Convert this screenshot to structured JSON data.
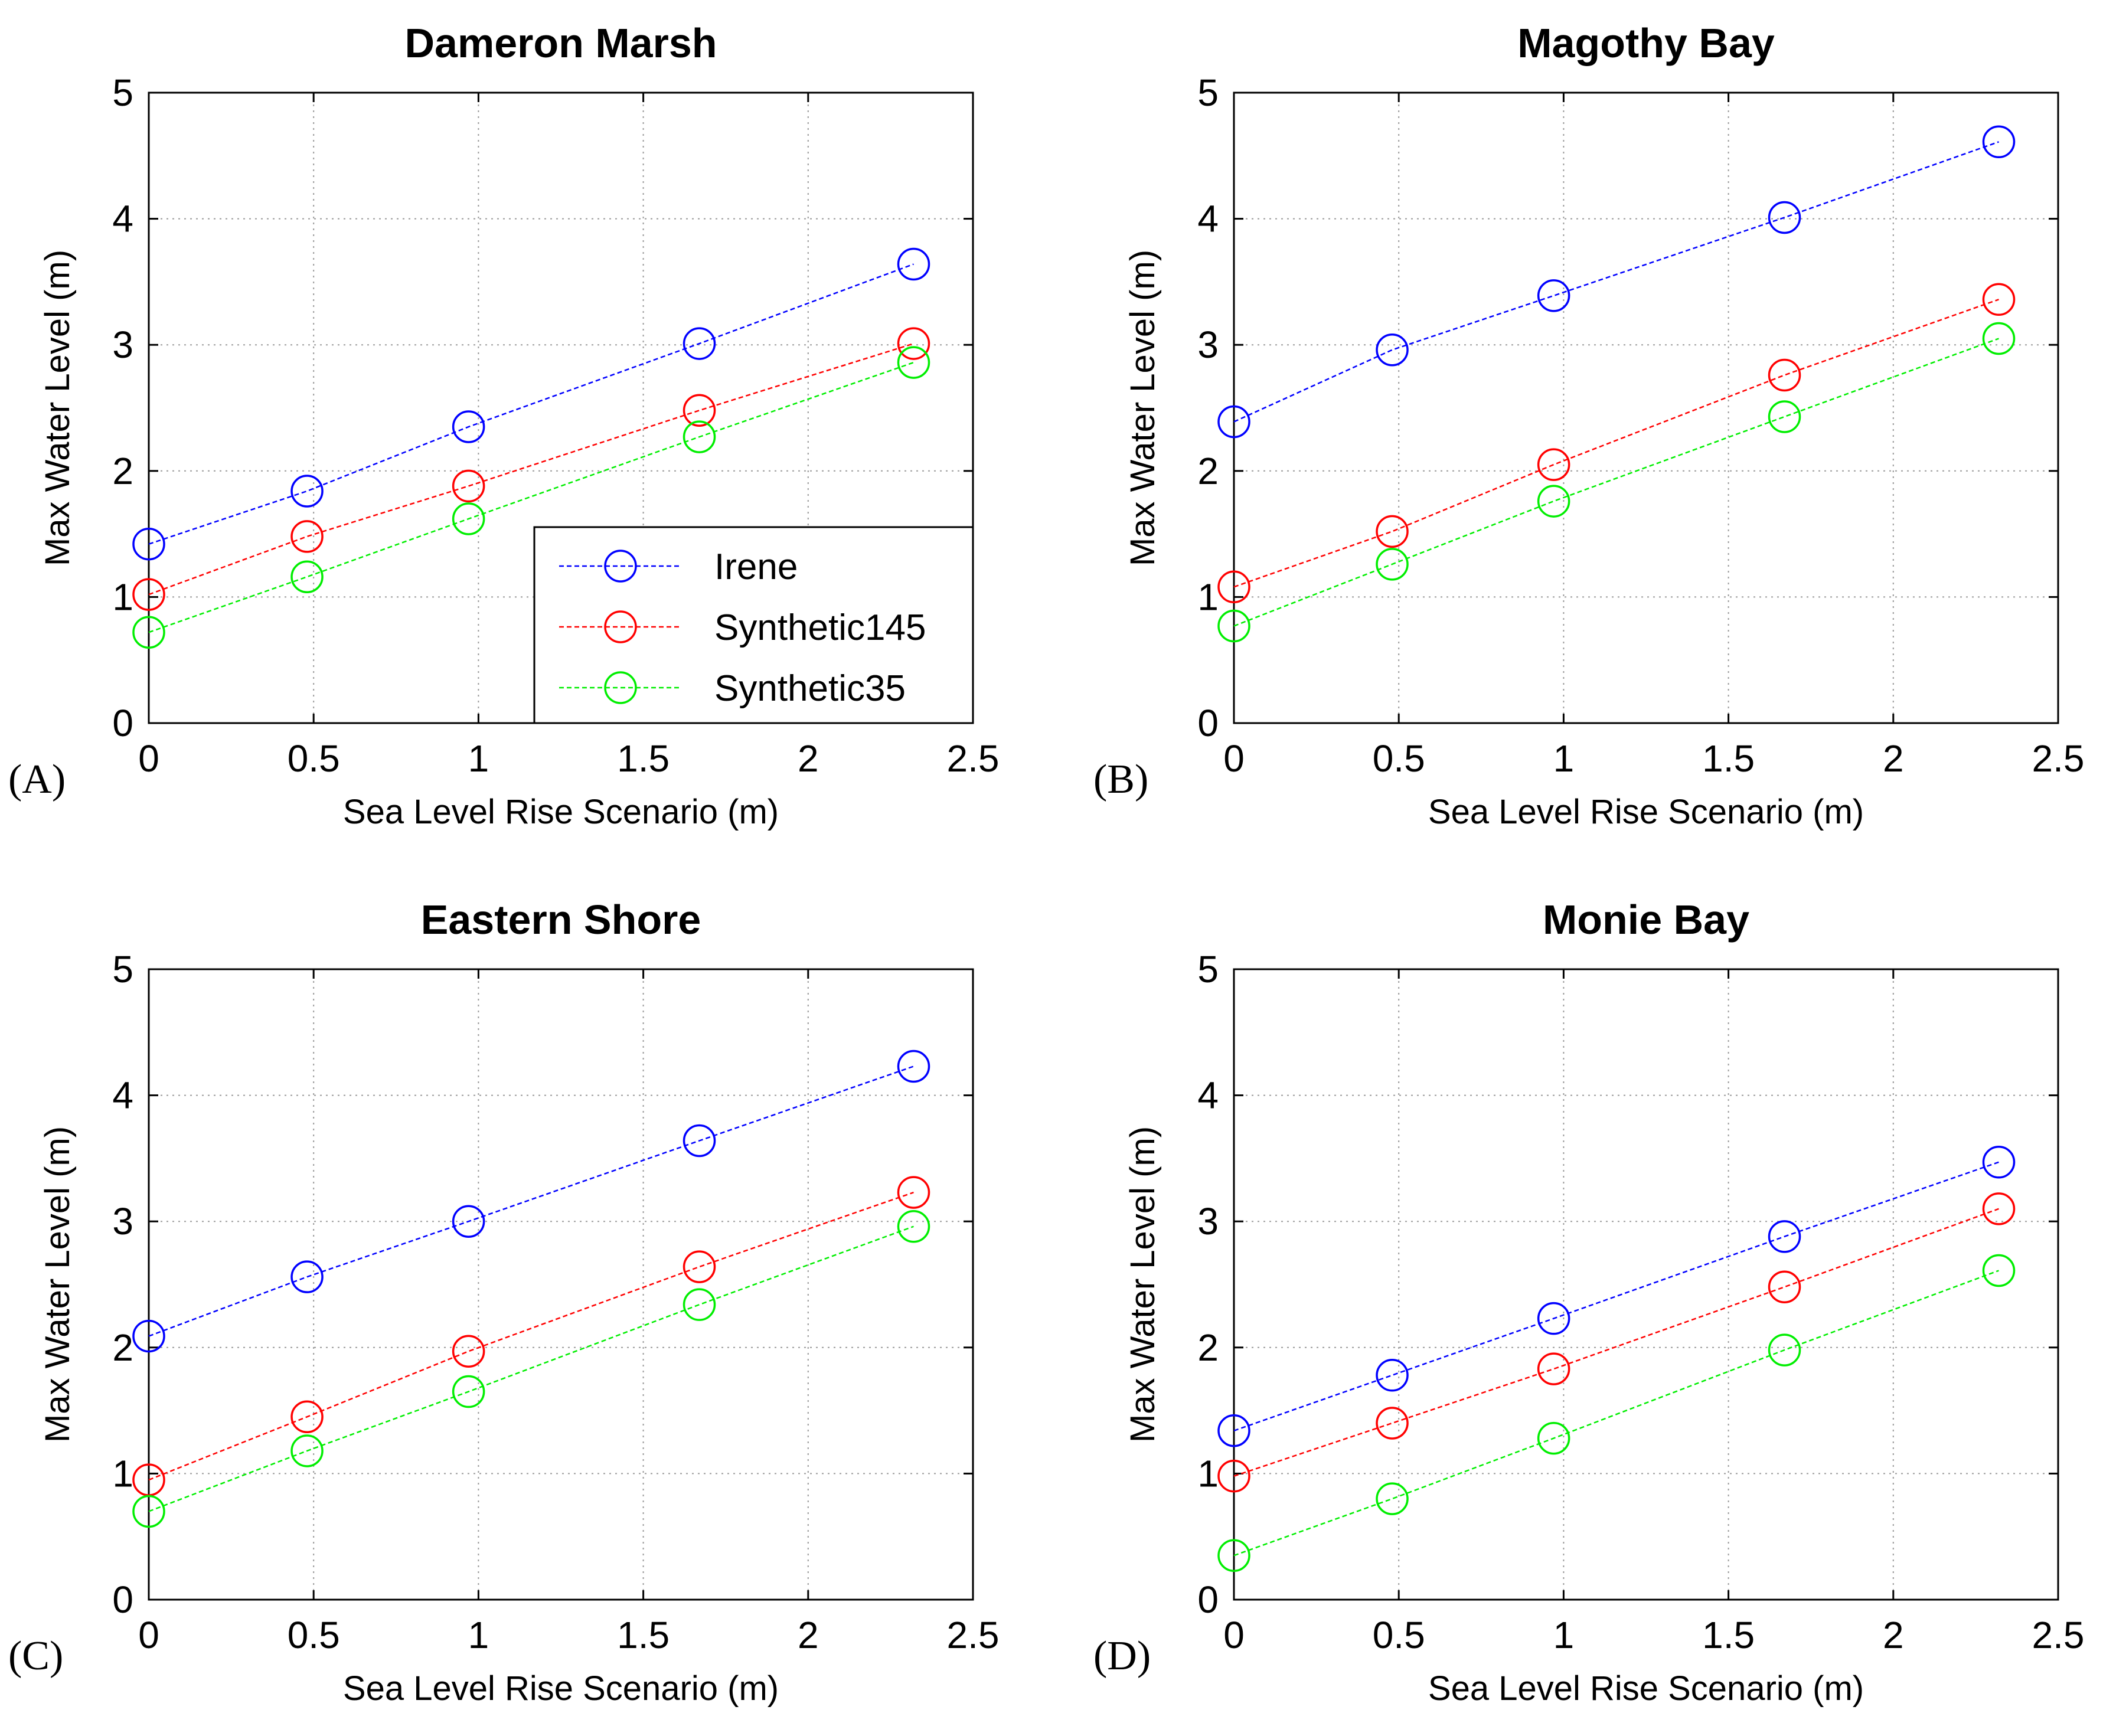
{
  "chart_data": [
    {
      "type": "line",
      "panel_label": "(A)",
      "title": "Dameron Marsh",
      "xlabel": "Sea Level Rise Scenario (m)",
      "ylabel": "Max Water Level (m)",
      "xlim": [
        0,
        2.5
      ],
      "ylim": [
        0,
        5
      ],
      "xticks": [
        "0",
        "0.5",
        "1",
        "1.5",
        "2",
        "2.5"
      ],
      "yticks": [
        "0",
        "1",
        "2",
        "3",
        "4",
        "5"
      ],
      "grid": true,
      "x": [
        0,
        0.48,
        0.97,
        1.67,
        2.32
      ],
      "legend": {
        "show": true,
        "placement": "lower-right"
      },
      "series": [
        {
          "name": "Irene",
          "color": "#0000ff",
          "values": [
            1.42,
            1.84,
            2.35,
            3.01,
            3.64
          ]
        },
        {
          "name": "Synthetic145",
          "color": "#ff0000",
          "values": [
            1.02,
            1.48,
            1.88,
            2.48,
            3.01
          ]
        },
        {
          "name": "Synthetic35",
          "color": "#00ee00",
          "values": [
            0.72,
            1.16,
            1.62,
            2.27,
            2.86
          ]
        }
      ]
    },
    {
      "type": "line",
      "panel_label": "(B)",
      "title": "Magothy Bay",
      "xlabel": "Sea Level Rise Scenario (m)",
      "ylabel": "Max Water Level (m)",
      "xlim": [
        0,
        2.5
      ],
      "ylim": [
        0,
        5
      ],
      "xticks": [
        "0",
        "0.5",
        "1",
        "1.5",
        "2",
        "2.5"
      ],
      "yticks": [
        "0",
        "1",
        "2",
        "3",
        "4",
        "5"
      ],
      "grid": true,
      "x": [
        0,
        0.48,
        0.97,
        1.67,
        2.32
      ],
      "legend": {
        "show": false
      },
      "series": [
        {
          "name": "Irene",
          "color": "#0000ff",
          "values": [
            2.39,
            2.96,
            3.39,
            4.01,
            4.61
          ]
        },
        {
          "name": "Synthetic145",
          "color": "#ff0000",
          "values": [
            1.08,
            1.52,
            2.05,
            2.76,
            3.36
          ]
        },
        {
          "name": "Synthetic35",
          "color": "#00ee00",
          "values": [
            0.77,
            1.26,
            1.76,
            2.43,
            3.05
          ]
        }
      ]
    },
    {
      "type": "line",
      "panel_label": "(C)",
      "title": "Eastern Shore",
      "xlabel": "Sea Level Rise Scenario (m)",
      "ylabel": "Max Water Level  (m)",
      "xlim": [
        0,
        2.5
      ],
      "ylim": [
        0,
        5
      ],
      "xticks": [
        "0",
        "0.5",
        "1",
        "1.5",
        "2",
        "2.5"
      ],
      "yticks": [
        "0",
        "1",
        "2",
        "3",
        "4",
        "5"
      ],
      "grid": true,
      "x": [
        0,
        0.48,
        0.97,
        1.67,
        2.32
      ],
      "legend": {
        "show": false
      },
      "series": [
        {
          "name": "Irene",
          "color": "#0000ff",
          "values": [
            2.09,
            2.56,
            3.0,
            3.64,
            4.23
          ]
        },
        {
          "name": "Synthetic145",
          "color": "#ff0000",
          "values": [
            0.95,
            1.45,
            1.97,
            2.64,
            3.23
          ]
        },
        {
          "name": "Synthetic35",
          "color": "#00ee00",
          "values": [
            0.7,
            1.18,
            1.65,
            2.34,
            2.96
          ]
        }
      ]
    },
    {
      "type": "line",
      "panel_label": "(D)",
      "title": "Monie Bay",
      "xlabel": "Sea Level Rise Scenario (m)",
      "ylabel": "Max Water Level (m)",
      "xlim": [
        0,
        2.5
      ],
      "ylim": [
        0,
        5
      ],
      "xticks": [
        "0",
        "0.5",
        "1",
        "1.5",
        "2",
        "2.5"
      ],
      "yticks": [
        "0",
        "1",
        "2",
        "3",
        "4",
        "5"
      ],
      "grid": true,
      "x": [
        0,
        0.48,
        0.97,
        1.67,
        2.32
      ],
      "legend": {
        "show": false
      },
      "series": [
        {
          "name": "Irene",
          "color": "#0000ff",
          "values": [
            1.34,
            1.78,
            2.23,
            2.88,
            3.47
          ]
        },
        {
          "name": "Synthetic145",
          "color": "#ff0000",
          "values": [
            0.98,
            1.4,
            1.83,
            2.48,
            3.1
          ]
        },
        {
          "name": "Synthetic35",
          "color": "#00ee00",
          "values": [
            0.35,
            0.8,
            1.28,
            1.98,
            2.61
          ]
        }
      ]
    }
  ]
}
